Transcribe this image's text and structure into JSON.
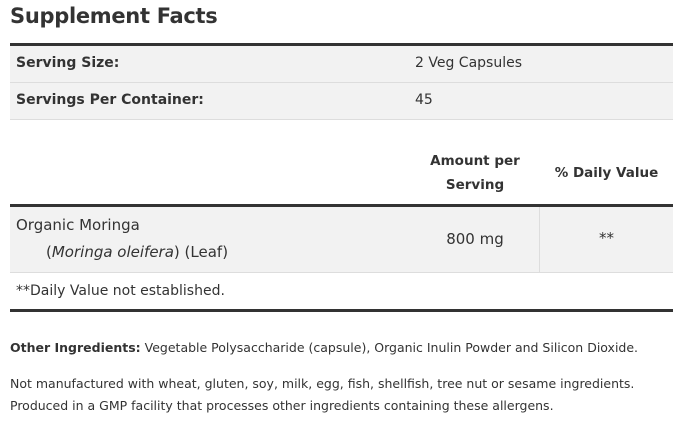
{
  "title": "Supplement Facts",
  "serving": [
    {
      "label": "Serving Size:",
      "value": "2 Veg Capsules"
    },
    {
      "label": "Servings Per Container:",
      "value": "45"
    }
  ],
  "headers": {
    "amount": "Amount per Serving",
    "daily_value": "% Daily Value"
  },
  "ingredient": {
    "name": "Organic Moringa",
    "latin": "Moringa oleifera",
    "part": "(Leaf)",
    "amount": "800 mg",
    "daily_value": "**"
  },
  "footnote": "**Daily Value not established.",
  "other_ingredients": {
    "label": "Other Ingredients:",
    "text": "Vegetable Polysaccharide (capsule), Organic Inulin Powder and Silicon Dioxide."
  },
  "allergen_lines": [
    "Not manufactured with wheat, gluten, soy, milk, egg, fish, shellfish, tree nut or sesame ingredients.",
    "Produced in a GMP facility that processes other ingredients containing these allergens."
  ]
}
